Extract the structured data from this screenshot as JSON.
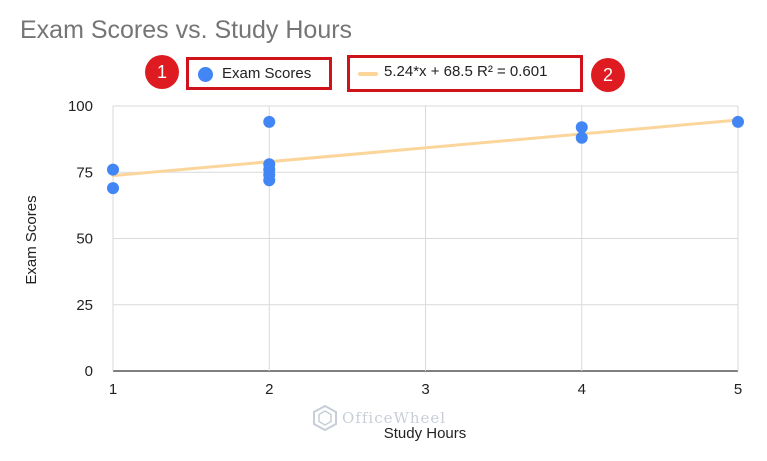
{
  "chart_data": {
    "type": "scatter",
    "title": "Exam Scores vs. Study Hours",
    "xlabel": "Study Hours",
    "ylabel": "Exam Scores",
    "xlim": [
      1,
      5
    ],
    "ylim": [
      0,
      100
    ],
    "x_ticks": [
      "1",
      "2",
      "3",
      "4",
      "5"
    ],
    "y_ticks": [
      "0",
      "25",
      "50",
      "75",
      "100"
    ],
    "grid": true,
    "legend_position": "top",
    "series": [
      {
        "name": "Exam Scores",
        "color": "#4285f4",
        "points": [
          {
            "x": 1,
            "y": 76
          },
          {
            "x": 1,
            "y": 69
          },
          {
            "x": 2,
            "y": 94
          },
          {
            "x": 2,
            "y": 78
          },
          {
            "x": 2,
            "y": 76
          },
          {
            "x": 2,
            "y": 74
          },
          {
            "x": 2,
            "y": 72
          },
          {
            "x": 4,
            "y": 92
          },
          {
            "x": 4,
            "y": 88
          },
          {
            "x": 5,
            "y": 94
          }
        ]
      }
    ],
    "trendline": {
      "label": "5.24*x + 68.5 R² = 0.601",
      "slope": 5.24,
      "intercept": 68.5,
      "color": "#fcd59b"
    }
  },
  "annotations": {
    "badge_1": "1",
    "badge_2": "2"
  },
  "watermark": {
    "text": "OfficeWheel"
  }
}
